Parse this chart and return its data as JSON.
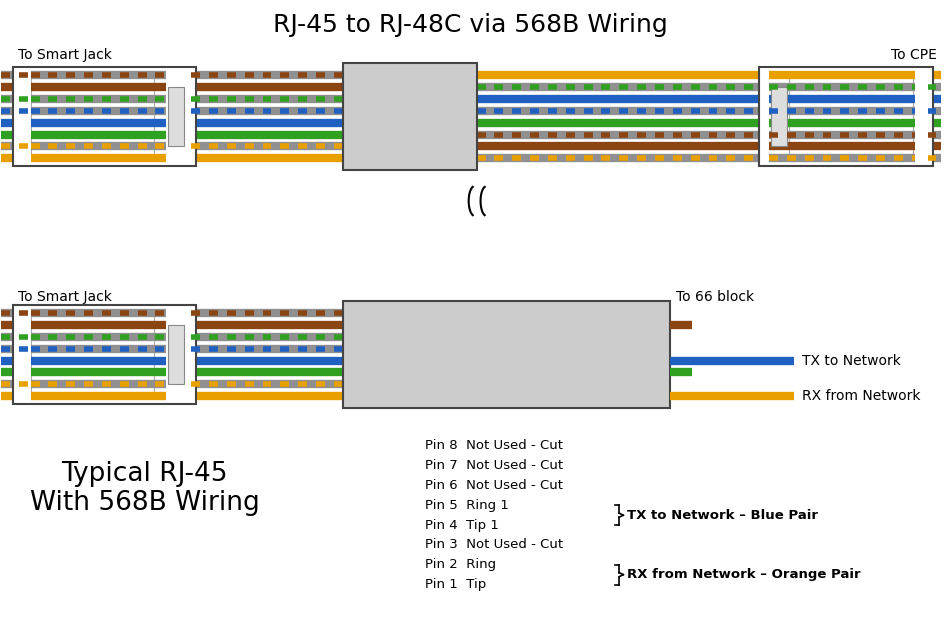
{
  "title": "RJ-45 to RJ-48C via 568B Wiring",
  "title_fontsize": 18,
  "bg_color": "#ffffff",
  "top_left_label": "To Smart Jack",
  "top_right_label": "To CPE",
  "bot_left_label": "To Smart Jack",
  "bot_right_label": "To 66 block",
  "tx_label": "TX to Network",
  "rx_label": "RX from Network",
  "typical_title_line1": "Typical RJ-45",
  "typical_title_line2": "With 568B Wiring",
  "pin_lines": [
    "Pin 8  Not Used - Cut",
    "Pin 7  Not Used - Cut",
    "Pin 6  Not Used - Cut",
    "Pin 5  Ring 1",
    "Pin 4  Tip 1",
    "Pin 3  Not Used - Cut",
    "Pin 2  Ring",
    "Pin 1  Tip"
  ],
  "brace_tx": "TX to Network – Blue Pair",
  "brace_rx": "RX from Network – Orange Pair",
  "colors": {
    "orange_w": "#ffffff",
    "orange": "#e8a000",
    "green_w": "#ffffff",
    "blue": "#2060c0",
    "blue_w": "#ffffff",
    "green": "#30a020",
    "brown_w": "#ffffff",
    "brown": "#8b4513",
    "gray": "#909090",
    "white": "#ffffff",
    "connector_fill": "#ffffff",
    "connector_edge": "#444444",
    "inner_edge": "#aaaaaa",
    "tab_fill": "#dddddd",
    "tab_edge": "#888888",
    "cable_box_fill": "#cccccc",
    "cable_box_edge": "#444444"
  }
}
